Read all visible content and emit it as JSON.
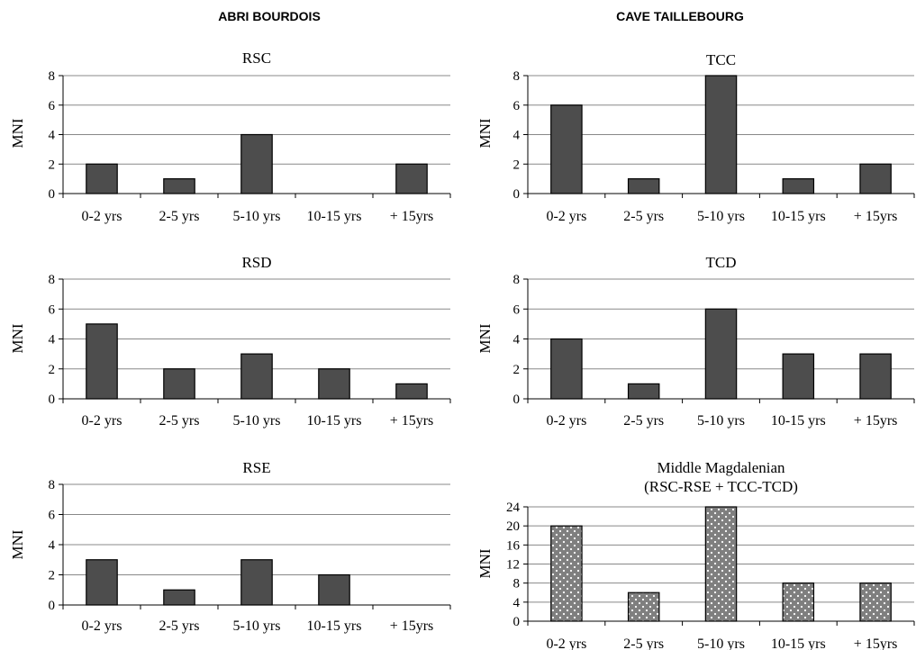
{
  "sites": [
    {
      "name": "ABRI BOURDOIS"
    },
    {
      "name": "CAVE TAILLEBOURG"
    }
  ],
  "colors": {
    "bar": "#4d4d4d",
    "bar_dotted": "#7f7f7f",
    "grid": "#888888",
    "axis": "#000000"
  },
  "chart_data": [
    {
      "type": "bar",
      "title": [
        "RSC"
      ],
      "ylabel": "MNI",
      "ylim": [
        0,
        8
      ],
      "yticks": [
        0,
        2,
        4,
        6,
        8
      ],
      "categories": [
        "0-2 yrs",
        "2-5 yrs",
        "5-10 yrs",
        "10-15 yrs",
        "+ 15yrs"
      ],
      "values": [
        2,
        1,
        4,
        0,
        2
      ],
      "grid": true,
      "pattern": "solid"
    },
    {
      "type": "bar",
      "title": [
        "TCC"
      ],
      "ylabel": "MNI",
      "ylim": [
        0,
        8
      ],
      "yticks": [
        0,
        2,
        4,
        6,
        8
      ],
      "categories": [
        "0-2 yrs",
        "2-5 yrs",
        "5-10 yrs",
        "10-15 yrs",
        "+ 15yrs"
      ],
      "values": [
        6,
        1,
        8,
        1,
        2
      ],
      "grid": true,
      "pattern": "solid"
    },
    {
      "type": "bar",
      "title": [
        "RSD"
      ],
      "ylabel": "MNI",
      "ylim": [
        0,
        8
      ],
      "yticks": [
        0,
        2,
        4,
        6,
        8
      ],
      "categories": [
        "0-2 yrs",
        "2-5 yrs",
        "5-10 yrs",
        "10-15 yrs",
        "+ 15yrs"
      ],
      "values": [
        5,
        2,
        3,
        2,
        1
      ],
      "grid": true,
      "pattern": "solid"
    },
    {
      "type": "bar",
      "title": [
        "TCD"
      ],
      "ylabel": "MNI",
      "ylim": [
        0,
        8
      ],
      "yticks": [
        0,
        2,
        4,
        6,
        8
      ],
      "categories": [
        "0-2 yrs",
        "2-5 yrs",
        "5-10 yrs",
        "10-15 yrs",
        "+ 15yrs"
      ],
      "values": [
        4,
        1,
        6,
        3,
        3
      ],
      "grid": true,
      "pattern": "solid"
    },
    {
      "type": "bar",
      "title": [
        "RSE"
      ],
      "ylabel": "MNI",
      "ylim": [
        0,
        8
      ],
      "yticks": [
        0,
        2,
        4,
        6,
        8
      ],
      "categories": [
        "0-2 yrs",
        "2-5 yrs",
        "5-10 yrs",
        "10-15 yrs",
        "+ 15yrs"
      ],
      "values": [
        3,
        1,
        3,
        2,
        0
      ],
      "grid": true,
      "pattern": "solid"
    },
    {
      "type": "bar",
      "title": [
        "Middle Magdalenian",
        "(RSC-RSE + TCC-TCD)"
      ],
      "ylabel": "MNI",
      "ylim": [
        0,
        24
      ],
      "yticks": [
        0,
        4,
        8,
        12,
        16,
        20,
        24
      ],
      "categories": [
        "0-2 yrs",
        "2-5 yrs",
        "5-10 yrs",
        "10-15 yrs",
        "+ 15yrs"
      ],
      "values": [
        20,
        6,
        24,
        8,
        8
      ],
      "grid": true,
      "pattern": "dotted"
    }
  ]
}
